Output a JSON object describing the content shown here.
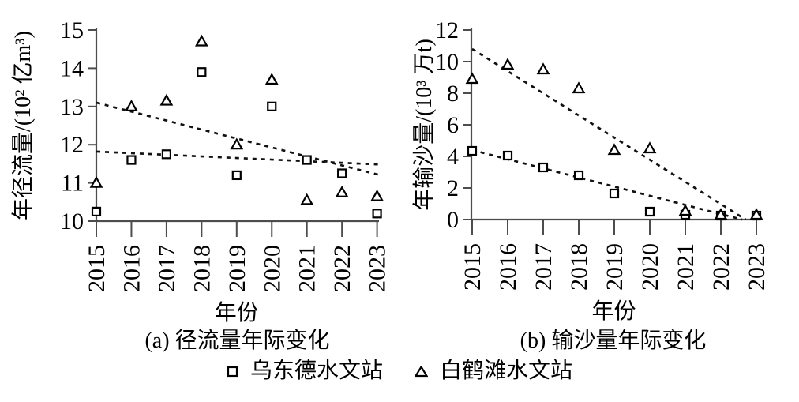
{
  "figure": {
    "legend": {
      "items": [
        {
          "marker": "square",
          "label": "乌东德水文站"
        },
        {
          "marker": "triangle",
          "label": "白鹤滩水文站"
        }
      ]
    }
  },
  "colors": {
    "background": "#ffffff",
    "axis": "#4d4d4d",
    "marker_stroke": "#000000",
    "trendline": "#111111",
    "text": "#000000"
  },
  "chart_data": [
    {
      "type": "scatter",
      "panel": "a",
      "caption": "(a) 径流量年际变化",
      "xlabel": "年份",
      "ylabel": "年径流量/(10² 亿m³)",
      "x": [
        2015,
        2016,
        2017,
        2018,
        2019,
        2020,
        2021,
        2022,
        2023
      ],
      "xlim": [
        2015,
        2023
      ],
      "ylim": [
        10,
        15
      ],
      "yticks": [
        10,
        11,
        12,
        13,
        14,
        15
      ],
      "grid": false,
      "legend_position": "below-figure",
      "series": [
        {
          "name": "乌东德水文站",
          "marker": "square",
          "values": [
            10.25,
            11.6,
            11.75,
            13.9,
            11.2,
            13.0,
            11.6,
            11.25,
            10.2
          ]
        },
        {
          "name": "白鹤滩水文站",
          "marker": "triangle",
          "values": [
            11.0,
            13.0,
            13.15,
            14.7,
            12.0,
            13.7,
            10.55,
            10.75,
            10.65
          ]
        }
      ],
      "trendlines": [
        {
          "series": "乌东德水文站",
          "style": "dashed",
          "points": [
            [
              2015,
              11.82
            ],
            [
              2023.1,
              11.48
            ]
          ]
        },
        {
          "series": "白鹤滩水文站",
          "style": "dashed",
          "points": [
            [
              2015,
              13.1
            ],
            [
              2023.1,
              11.2
            ]
          ]
        }
      ]
    },
    {
      "type": "scatter",
      "panel": "b",
      "caption": "(b) 输沙量年际变化",
      "xlabel": "年份",
      "ylabel": "年输沙量/(10³ 万t)",
      "x": [
        2015,
        2016,
        2017,
        2018,
        2019,
        2020,
        2021,
        2022,
        2023
      ],
      "xlim": [
        2015,
        2023
      ],
      "ylim": [
        0,
        12
      ],
      "yticks": [
        0,
        2,
        4,
        6,
        8,
        10,
        12
      ],
      "grid": false,
      "legend_position": "below-figure",
      "series": [
        {
          "name": "乌东德水文站",
          "marker": "square",
          "values": [
            4.35,
            4.05,
            3.3,
            2.8,
            1.65,
            0.5,
            0.3,
            0.25,
            0.25
          ]
        },
        {
          "name": "白鹤滩水文站",
          "marker": "triangle",
          "values": [
            8.9,
            9.8,
            9.5,
            8.3,
            4.4,
            4.5,
            0.55,
            0.3,
            0.3
          ]
        }
      ],
      "trendlines": [
        {
          "series": "乌东德水文站",
          "style": "dashed",
          "points": [
            [
              2015,
              4.4
            ],
            [
              2022.6,
              0
            ]
          ]
        },
        {
          "series": "白鹤滩水文站",
          "style": "dashed",
          "points": [
            [
              2015,
              10.8
            ],
            [
              2022.7,
              0
            ]
          ]
        }
      ]
    }
  ]
}
